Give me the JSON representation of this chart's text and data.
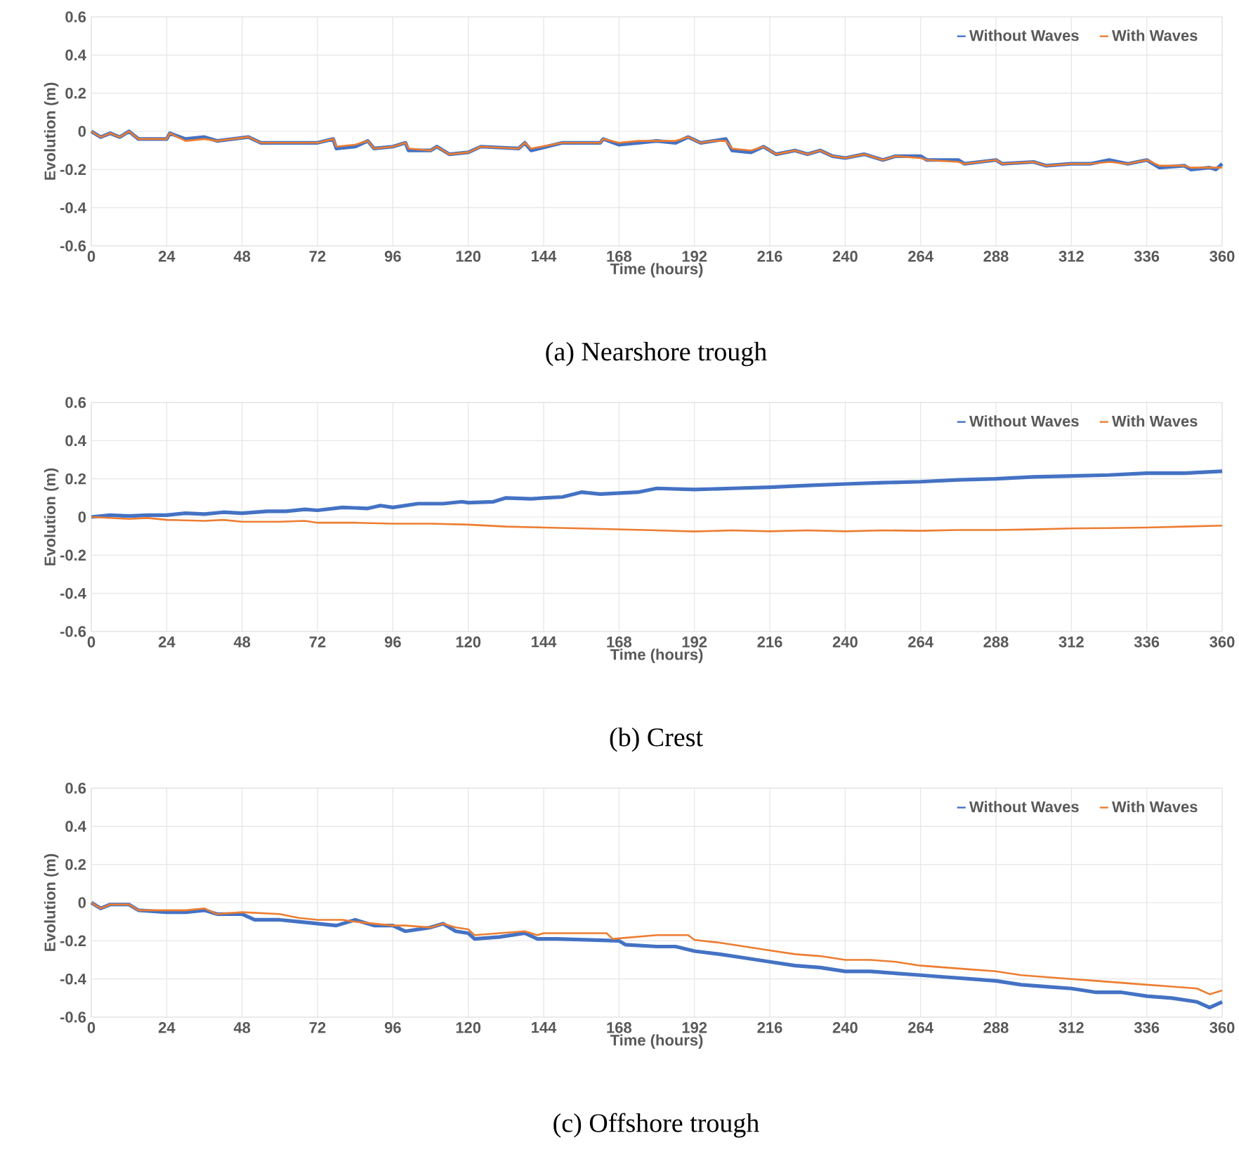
{
  "chart_data": [
    {
      "type": "line",
      "xlabel": "Time (hours)",
      "ylabel": "Evolution (m)",
      "annotations": [
        "(a) Nearshore trough"
      ],
      "xlim": [
        0,
        360
      ],
      "ylim": [
        -0.6,
        0.6
      ],
      "xticks": [
        0,
        24,
        48,
        72,
        96,
        120,
        144,
        168,
        192,
        216,
        240,
        264,
        288,
        312,
        336,
        360
      ],
      "yticks": [
        -0.6,
        -0.4,
        -0.2,
        0,
        0.2,
        0.4,
        0.6
      ],
      "grid": true,
      "legend": "top right",
      "marker": "none",
      "line_style": "solid",
      "series": [
        {
          "name": "Without Waves",
          "color": "#4472c4",
          "x": [
            0,
            3,
            6,
            9,
            12,
            15,
            24,
            25,
            30,
            36,
            40,
            50,
            54,
            66,
            72,
            77,
            78,
            84,
            88,
            90,
            96,
            100,
            101,
            108,
            110,
            114,
            120,
            124,
            136,
            138,
            140,
            150,
            162,
            163,
            168,
            174,
            180,
            186,
            190,
            194,
            198,
            202,
            204,
            210,
            214,
            218,
            224,
            228,
            232,
            236,
            240,
            246,
            252,
            256,
            264,
            266,
            276,
            278,
            288,
            290,
            300,
            304,
            312,
            318,
            324,
            330,
            336,
            340,
            348,
            350,
            356,
            358,
            360
          ],
          "values": [
            0,
            -0.03,
            -0.01,
            -0.03,
            0,
            -0.04,
            -0.04,
            -0.01,
            -0.04,
            -0.03,
            -0.05,
            -0.03,
            -0.06,
            -0.06,
            -0.06,
            -0.04,
            -0.09,
            -0.08,
            -0.05,
            -0.09,
            -0.08,
            -0.06,
            -0.1,
            -0.1,
            -0.08,
            -0.12,
            -0.11,
            -0.08,
            -0.09,
            -0.06,
            -0.1,
            -0.06,
            -0.06,
            -0.04,
            -0.07,
            -0.06,
            -0.05,
            -0.06,
            -0.03,
            -0.06,
            -0.05,
            -0.04,
            -0.1,
            -0.11,
            -0.08,
            -0.12,
            -0.1,
            -0.12,
            -0.1,
            -0.13,
            -0.14,
            -0.12,
            -0.15,
            -0.13,
            -0.13,
            -0.15,
            -0.15,
            -0.17,
            -0.15,
            -0.17,
            -0.16,
            -0.18,
            -0.17,
            -0.17,
            -0.15,
            -0.17,
            -0.15,
            -0.19,
            -0.18,
            -0.2,
            -0.19,
            -0.2,
            -0.17
          ]
        },
        {
          "name": "With Waves",
          "color": "#ed7d31",
          "x": [
            0,
            3,
            6,
            9,
            12,
            15,
            24,
            25,
            30,
            36,
            40,
            50,
            54,
            66,
            72,
            77,
            78,
            84,
            88,
            90,
            96,
            100,
            101,
            108,
            110,
            114,
            120,
            124,
            136,
            138,
            140,
            150,
            162,
            163,
            168,
            174,
            180,
            186,
            190,
            194,
            198,
            202,
            204,
            210,
            214,
            218,
            224,
            228,
            232,
            236,
            240,
            246,
            252,
            256,
            264,
            266,
            276,
            278,
            288,
            290,
            300,
            304,
            312,
            318,
            324,
            330,
            336,
            340,
            348,
            350,
            356,
            358,
            360
          ],
          "values": [
            0,
            -0.03,
            -0.01,
            -0.03,
            0,
            -0.04,
            -0.04,
            -0.01,
            -0.05,
            -0.04,
            -0.05,
            -0.03,
            -0.06,
            -0.06,
            -0.06,
            -0.04,
            -0.08,
            -0.07,
            -0.05,
            -0.09,
            -0.08,
            -0.06,
            -0.09,
            -0.1,
            -0.08,
            -0.12,
            -0.11,
            -0.08,
            -0.09,
            -0.06,
            -0.09,
            -0.06,
            -0.06,
            -0.04,
            -0.06,
            -0.05,
            -0.05,
            -0.05,
            -0.03,
            -0.06,
            -0.05,
            -0.05,
            -0.09,
            -0.1,
            -0.08,
            -0.12,
            -0.1,
            -0.12,
            -0.1,
            -0.13,
            -0.14,
            -0.12,
            -0.15,
            -0.13,
            -0.14,
            -0.15,
            -0.16,
            -0.17,
            -0.15,
            -0.17,
            -0.16,
            -0.18,
            -0.17,
            -0.17,
            -0.16,
            -0.17,
            -0.15,
            -0.18,
            -0.18,
            -0.19,
            -0.19,
            -0.19,
            -0.19
          ]
        }
      ]
    },
    {
      "type": "line",
      "xlabel": "Time (hours)",
      "ylabel": "Evolution (m)",
      "annotations": [
        "(b) Crest"
      ],
      "xlim": [
        0,
        360
      ],
      "ylim": [
        -0.6,
        0.6
      ],
      "xticks": [
        0,
        24,
        48,
        72,
        96,
        120,
        144,
        168,
        192,
        216,
        240,
        264,
        288,
        312,
        336,
        360
      ],
      "yticks": [
        -0.6,
        -0.4,
        -0.2,
        0,
        0.2,
        0.4,
        0.6
      ],
      "grid": true,
      "legend": "top right",
      "marker": "none",
      "line_style": "solid",
      "series": [
        {
          "name": "Without Waves",
          "color": "#4472c4",
          "x": [
            0,
            6,
            12,
            18,
            24,
            30,
            36,
            42,
            48,
            56,
            62,
            68,
            72,
            80,
            88,
            92,
            96,
            104,
            112,
            118,
            120,
            128,
            132,
            140,
            144,
            150,
            156,
            162,
            168,
            174,
            180,
            192,
            204,
            216,
            228,
            240,
            252,
            264,
            276,
            288,
            300,
            312,
            324,
            336,
            348,
            360
          ],
          "values": [
            0,
            0.01,
            0.005,
            0.01,
            0.01,
            0.02,
            0.015,
            0.025,
            0.02,
            0.03,
            0.03,
            0.04,
            0.035,
            0.05,
            0.045,
            0.06,
            0.05,
            0.07,
            0.07,
            0.08,
            0.075,
            0.08,
            0.1,
            0.095,
            0.1,
            0.105,
            0.13,
            0.12,
            0.125,
            0.13,
            0.15,
            0.144,
            0.15,
            0.156,
            0.165,
            0.173,
            0.18,
            0.185,
            0.195,
            0.2,
            0.21,
            0.215,
            0.22,
            0.23,
            0.23,
            0.24
          ]
        },
        {
          "name": "With Waves",
          "color": "#ed7d31",
          "x": [
            0,
            12,
            18,
            24,
            36,
            42,
            48,
            60,
            68,
            72,
            84,
            96,
            108,
            120,
            132,
            144,
            156,
            168,
            180,
            192,
            204,
            216,
            228,
            240,
            252,
            264,
            276,
            288,
            300,
            312,
            324,
            336,
            348,
            360
          ],
          "values": [
            0,
            -0.01,
            -0.005,
            -0.015,
            -0.02,
            -0.015,
            -0.025,
            -0.025,
            -0.02,
            -0.03,
            -0.03,
            -0.035,
            -0.035,
            -0.04,
            -0.05,
            -0.055,
            -0.06,
            -0.065,
            -0.07,
            -0.076,
            -0.07,
            -0.075,
            -0.07,
            -0.075,
            -0.07,
            -0.072,
            -0.068,
            -0.068,
            -0.065,
            -0.06,
            -0.058,
            -0.055,
            -0.05,
            -0.045
          ]
        }
      ]
    },
    {
      "type": "line",
      "xlabel": "Time (hours)",
      "ylabel": "Evolution (m)",
      "annotations": [
        "(c) Offshore trough"
      ],
      "xlim": [
        0,
        360
      ],
      "ylim": [
        -0.6,
        0.6
      ],
      "xticks": [
        0,
        24,
        48,
        72,
        96,
        120,
        144,
        168,
        192,
        216,
        240,
        264,
        288,
        312,
        336,
        360
      ],
      "yticks": [
        -0.6,
        -0.4,
        -0.2,
        0,
        0.2,
        0.4,
        0.6
      ],
      "grid": true,
      "legend": "top right",
      "marker": "none",
      "line_style": "solid",
      "series": [
        {
          "name": "Without Waves",
          "color": "#4472c4",
          "x": [
            0,
            3,
            6,
            12,
            15,
            24,
            30,
            36,
            40,
            48,
            52,
            60,
            66,
            72,
            78,
            84,
            90,
            96,
            100,
            108,
            112,
            116,
            120,
            122,
            130,
            138,
            142,
            148,
            168,
            170,
            180,
            186,
            192,
            200,
            208,
            216,
            224,
            232,
            240,
            248,
            256,
            264,
            272,
            280,
            288,
            296,
            304,
            312,
            320,
            328,
            336,
            344,
            352,
            356,
            360
          ],
          "values": [
            0,
            -0.03,
            -0.01,
            -0.01,
            -0.04,
            -0.05,
            -0.05,
            -0.04,
            -0.06,
            -0.06,
            -0.09,
            -0.09,
            -0.1,
            -0.11,
            -0.12,
            -0.09,
            -0.12,
            -0.12,
            -0.15,
            -0.13,
            -0.11,
            -0.15,
            -0.16,
            -0.19,
            -0.18,
            -0.16,
            -0.19,
            -0.19,
            -0.2,
            -0.22,
            -0.23,
            -0.23,
            -0.254,
            -0.27,
            -0.29,
            -0.31,
            -0.33,
            -0.34,
            -0.36,
            -0.36,
            -0.37,
            -0.38,
            -0.39,
            -0.4,
            -0.41,
            -0.43,
            -0.44,
            -0.45,
            -0.47,
            -0.47,
            -0.49,
            -0.5,
            -0.52,
            -0.55,
            -0.52
          ]
        },
        {
          "name": "With Waves",
          "color": "#ed7d31",
          "x": [
            0,
            3,
            6,
            12,
            15,
            24,
            30,
            36,
            40,
            48,
            60,
            66,
            72,
            80,
            84,
            90,
            96,
            100,
            108,
            112,
            116,
            120,
            122,
            130,
            138,
            142,
            144,
            164,
            166,
            180,
            190,
            192,
            200,
            208,
            216,
            224,
            232,
            240,
            248,
            256,
            264,
            272,
            280,
            288,
            296,
            304,
            312,
            320,
            328,
            336,
            344,
            352,
            356,
            360
          ],
          "values": [
            0,
            -0.03,
            -0.01,
            -0.01,
            -0.04,
            -0.04,
            -0.04,
            -0.03,
            -0.06,
            -0.05,
            -0.06,
            -0.08,
            -0.09,
            -0.09,
            -0.1,
            -0.11,
            -0.12,
            -0.12,
            -0.13,
            -0.11,
            -0.13,
            -0.14,
            -0.17,
            -0.16,
            -0.15,
            -0.17,
            -0.16,
            -0.16,
            -0.19,
            -0.17,
            -0.17,
            -0.195,
            -0.21,
            -0.23,
            -0.25,
            -0.27,
            -0.28,
            -0.3,
            -0.3,
            -0.31,
            -0.33,
            -0.34,
            -0.35,
            -0.36,
            -0.38,
            -0.39,
            -0.4,
            -0.41,
            -0.42,
            -0.43,
            -0.44,
            -0.45,
            -0.48,
            -0.46
          ]
        }
      ]
    }
  ]
}
